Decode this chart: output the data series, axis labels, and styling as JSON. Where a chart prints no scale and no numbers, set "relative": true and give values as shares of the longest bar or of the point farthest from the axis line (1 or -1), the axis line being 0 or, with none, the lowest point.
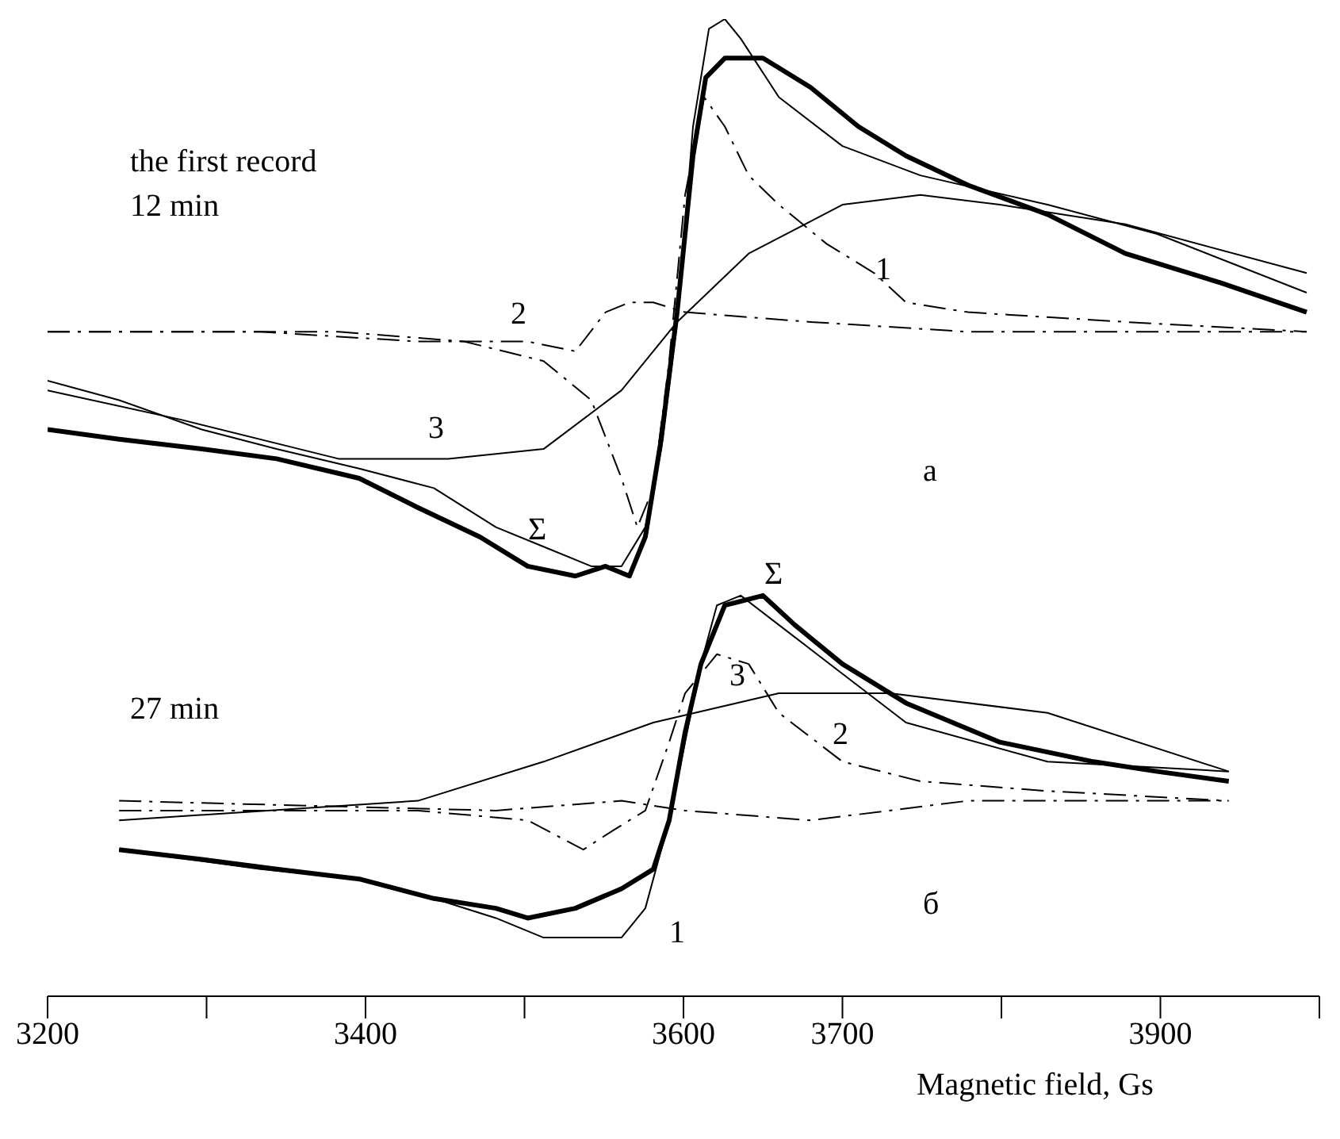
{
  "chart_data": {
    "type": "line",
    "relative": true,
    "xlabel": "Magnetic field, Gs",
    "xlim": [
      3200,
      4000
    ],
    "xticks": [
      3200,
      {
        "value": 3300,
        "label": null
      },
      3400,
      {
        "value": 3500,
        "label": null
      },
      3600,
      3700,
      {
        "value": 3800,
        "label": null
      },
      3900,
      {
        "value": 4000,
        "label": null
      }
    ],
    "grid": false,
    "legend": false,
    "marker": "none",
    "series": [
      {
        "color": "#000000",
        "line_style": "solid",
        "x": [
          3200,
          3245,
          3297,
          3344,
          3396,
          3433,
          3472,
          3502,
          3532,
          3551,
          3566,
          3576,
          3586,
          3596,
          3606,
          3614,
          3626,
          3650,
          3680,
          3710,
          3740,
          3779,
          3829,
          3878,
          3938,
          3992
        ],
        "values": [
          0.58,
          0.57,
          0.56,
          0.55,
          0.53,
          0.5,
          0.47,
          0.44,
          0.43,
          0.44,
          0.43,
          0.47,
          0.57,
          0.7,
          0.86,
          0.94,
          0.96,
          0.96,
          0.93,
          0.89,
          0.86,
          0.83,
          0.8,
          0.76,
          0.73,
          0.7
        ]
      },
      {
        "color": "#000000",
        "line_style": "solid",
        "x": [
          3200,
          3245,
          3297,
          3344,
          3396,
          3443,
          3482,
          3512,
          3542,
          3561,
          3576,
          3586,
          3596,
          3606,
          3616,
          3626,
          3636,
          3660,
          3700,
          3749,
          3829,
          3898,
          3992
        ],
        "values": [
          0.63,
          0.61,
          0.58,
          0.56,
          0.54,
          0.52,
          0.48,
          0.46,
          0.44,
          0.44,
          0.48,
          0.56,
          0.69,
          0.89,
          0.99,
          1.0,
          0.98,
          0.92,
          0.87,
          0.84,
          0.81,
          0.78,
          0.72
        ]
      },
      {
        "color": "#000000",
        "line_style": "dashed",
        "x": [
          3200,
          3284,
          3383,
          3462,
          3512,
          3542,
          3561,
          3571,
          3581,
          3591,
          3601,
          3613,
          3626,
          3641,
          3660,
          3690,
          3720,
          3740,
          3779,
          3878,
          3992
        ],
        "values": [
          0.68,
          0.68,
          0.68,
          0.67,
          0.65,
          0.61,
          0.53,
          0.48,
          0.52,
          0.65,
          0.82,
          0.92,
          0.89,
          0.84,
          0.81,
          0.77,
          0.74,
          0.71,
          0.7,
          0.69,
          0.68
        ]
      },
      {
        "color": "#000000",
        "line_style": "dashed",
        "x": [
          3200,
          3334,
          3433,
          3502,
          3532,
          3551,
          3566,
          3581,
          3601,
          3680,
          3779,
          3992
        ],
        "values": [
          0.68,
          0.68,
          0.67,
          0.67,
          0.66,
          0.7,
          0.71,
          0.71,
          0.7,
          0.69,
          0.68,
          0.68
        ]
      },
      {
        "color": "#000000",
        "line_style": "solid",
        "x": [
          3200,
          3284,
          3383,
          3452,
          3512,
          3561,
          3596,
          3641,
          3700,
          3749,
          3799,
          3878,
          3992
        ],
        "values": [
          0.62,
          0.59,
          0.55,
          0.55,
          0.56,
          0.62,
          0.69,
          0.76,
          0.81,
          0.82,
          0.81,
          0.79,
          0.74
        ]
      },
      {
        "color": "#000000",
        "line_style": "solid",
        "x": [
          3245,
          3297,
          3344,
          3396,
          3443,
          3482,
          3502,
          3532,
          3561,
          3581,
          3591,
          3601,
          3611,
          3626,
          3650,
          3670,
          3700,
          3740,
          3799,
          3858,
          3898,
          3943
        ],
        "values": [
          0.15,
          0.14,
          0.13,
          0.12,
          0.1,
          0.09,
          0.08,
          0.09,
          0.11,
          0.13,
          0.18,
          0.27,
          0.34,
          0.4,
          0.41,
          0.38,
          0.34,
          0.3,
          0.26,
          0.24,
          0.23,
          0.22
        ]
      },
      {
        "color": "#000000",
        "line_style": "solid",
        "x": [
          3245,
          3334,
          3396,
          3443,
          3482,
          3512,
          3532,
          3561,
          3576,
          3591,
          3601,
          3611,
          3621,
          3636,
          3660,
          3700,
          3740,
          3829,
          3943
        ],
        "values": [
          0.15,
          0.13,
          0.12,
          0.1,
          0.08,
          0.06,
          0.06,
          0.06,
          0.09,
          0.18,
          0.26,
          0.34,
          0.4,
          0.41,
          0.38,
          0.33,
          0.28,
          0.24,
          0.23
        ]
      },
      {
        "color": "#000000",
        "line_style": "dashed",
        "x": [
          3245,
          3433,
          3502,
          3537,
          3556,
          3576,
          3591,
          3601,
          3621,
          3641,
          3660,
          3700,
          3749,
          3829,
          3943
        ],
        "values": [
          0.19,
          0.19,
          0.18,
          0.15,
          0.17,
          0.19,
          0.26,
          0.31,
          0.35,
          0.34,
          0.29,
          0.24,
          0.22,
          0.21,
          0.2
        ]
      },
      {
        "color": "#000000",
        "line_style": "dashed",
        "x": [
          3245,
          3482,
          3561,
          3601,
          3680,
          3779,
          3943
        ],
        "values": [
          0.2,
          0.19,
          0.2,
          0.19,
          0.18,
          0.2,
          0.2
        ]
      },
      {
        "color": "#000000",
        "line_style": "solid",
        "x": [
          3245,
          3433,
          3512,
          3581,
          3660,
          3730,
          3829,
          3943
        ],
        "values": [
          0.18,
          0.2,
          0.24,
          0.28,
          0.31,
          0.31,
          0.29,
          0.23
        ]
      }
    ],
    "annotations": [
      "the first record",
      "12 min",
      "27 min",
      "а",
      "б",
      "Σ",
      "1",
      "2",
      "3",
      "Σ",
      "3",
      "2",
      "1"
    ]
  }
}
